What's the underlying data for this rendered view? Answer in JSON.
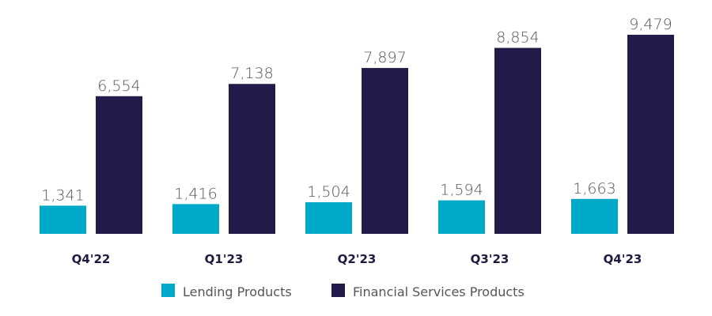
{
  "chart_data": {
    "type": "bar",
    "categories": [
      "Q4'22",
      "Q1'23",
      "Q2'23",
      "Q3'23",
      "Q4'23"
    ],
    "series": [
      {
        "name": "Lending Products",
        "color": "#00a9c8",
        "values": [
          1341,
          1416,
          1504,
          1594,
          1663
        ],
        "labels": [
          "1,341",
          "1,416",
          "1,504",
          "1,594",
          "1,663"
        ]
      },
      {
        "name": "Financial Services Products",
        "color": "#221a48",
        "values": [
          6554,
          7138,
          7897,
          8854,
          9479
        ],
        "labels": [
          "6,554",
          "7,138",
          "7,897",
          "8,854",
          "9,479"
        ]
      }
    ],
    "ylim": [
      0,
      9479
    ],
    "grid": false,
    "legend_position": "bottom-center"
  }
}
